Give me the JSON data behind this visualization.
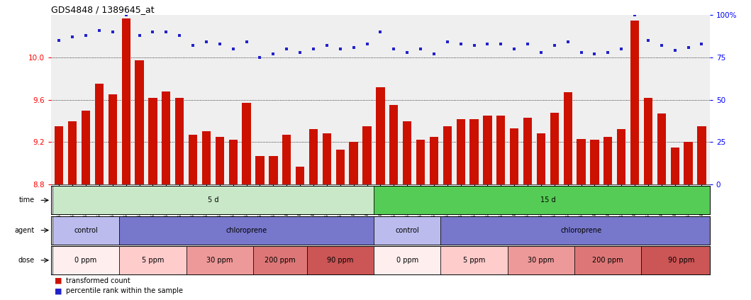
{
  "title": "GDS4848 / 1389645_at",
  "samples": [
    "GSM1001824",
    "GSM1001825",
    "GSM1001826",
    "GSM1001827",
    "GSM1001828",
    "GSM1001854",
    "GSM1001855",
    "GSM1001856",
    "GSM1001857",
    "GSM1001858",
    "GSM1001844",
    "GSM1001845",
    "GSM1001846",
    "GSM1001847",
    "GSM1001848",
    "GSM1001834",
    "GSM1001835",
    "GSM1001836",
    "GSM1001837",
    "GSM1001838",
    "GSM1001864",
    "GSM1001865",
    "GSM1001866",
    "GSM1001867",
    "GSM1001819",
    "GSM1001820",
    "GSM1001821",
    "GSM1001822",
    "GSM1001823",
    "GSM1001849",
    "GSM1001850",
    "GSM1001851",
    "GSM1001852",
    "GSM1001853",
    "GSM1001839",
    "GSM1001840",
    "GSM1001841",
    "GSM1001842",
    "GSM1001843",
    "GSM1001829",
    "GSM1001830",
    "GSM1001831",
    "GSM1001832",
    "GSM1001833",
    "GSM1001859",
    "GSM1001860",
    "GSM1001861",
    "GSM1001862",
    "GSM1001863"
  ],
  "bar_values": [
    9.35,
    9.4,
    9.5,
    9.75,
    9.65,
    10.37,
    9.97,
    9.62,
    9.68,
    9.62,
    9.27,
    9.3,
    9.25,
    9.22,
    9.57,
    9.07,
    9.07,
    9.27,
    8.97,
    9.32,
    9.28,
    9.13,
    9.2,
    9.35,
    9.72,
    9.55,
    9.4,
    9.22,
    9.25,
    9.35,
    9.42,
    9.42,
    9.45,
    9.45,
    9.33,
    9.43,
    9.28,
    9.48,
    9.67,
    9.23,
    9.22,
    9.25,
    9.32,
    10.35,
    9.62,
    9.47,
    9.15,
    9.2,
    9.35
  ],
  "percentile_values": [
    85,
    87,
    88,
    91,
    90,
    100,
    88,
    90,
    90,
    88,
    82,
    84,
    83,
    80,
    84,
    75,
    77,
    80,
    78,
    80,
    82,
    80,
    81,
    83,
    90,
    80,
    78,
    80,
    77,
    84,
    83,
    82,
    83,
    83,
    80,
    83,
    78,
    82,
    84,
    78,
    77,
    78,
    80,
    100,
    85,
    82,
    79,
    81,
    83
  ],
  "ylim_left": [
    8.8,
    10.4
  ],
  "ylim_right": [
    0,
    100
  ],
  "yticks_left": [
    8.8,
    9.2,
    9.6,
    10.0
  ],
  "yticks_right": [
    0,
    25,
    50,
    75,
    100
  ],
  "bar_color": "#cc1100",
  "dot_color": "#2222cc",
  "background_color": "#efefef",
  "time_row": {
    "label": "time",
    "segments": [
      {
        "text": "5 d",
        "start": 0,
        "end": 24,
        "color": "#c8e8c8"
      },
      {
        "text": "15 d",
        "start": 24,
        "end": 50,
        "color": "#55cc55"
      }
    ]
  },
  "agent_row": {
    "label": "agent",
    "segments": [
      {
        "text": "control",
        "start": 0,
        "end": 5,
        "color": "#bbbbee"
      },
      {
        "text": "chloroprene",
        "start": 5,
        "end": 24,
        "color": "#7777cc"
      },
      {
        "text": "control",
        "start": 24,
        "end": 29,
        "color": "#bbbbee"
      },
      {
        "text": "chloroprene",
        "start": 29,
        "end": 50,
        "color": "#7777cc"
      }
    ]
  },
  "dose_row": {
    "label": "dose",
    "segments": [
      {
        "text": "0 ppm",
        "start": 0,
        "end": 5,
        "color": "#ffeeee"
      },
      {
        "text": "5 ppm",
        "start": 5,
        "end": 10,
        "color": "#ffcccc"
      },
      {
        "text": "30 ppm",
        "start": 10,
        "end": 15,
        "color": "#ee9999"
      },
      {
        "text": "200 ppm",
        "start": 15,
        "end": 19,
        "color": "#dd7777"
      },
      {
        "text": "90 ppm",
        "start": 19,
        "end": 24,
        "color": "#cc5555"
      },
      {
        "text": "0 ppm",
        "start": 24,
        "end": 29,
        "color": "#ffeeee"
      },
      {
        "text": "5 ppm",
        "start": 29,
        "end": 34,
        "color": "#ffcccc"
      },
      {
        "text": "30 ppm",
        "start": 34,
        "end": 39,
        "color": "#ee9999"
      },
      {
        "text": "200 ppm",
        "start": 39,
        "end": 44,
        "color": "#dd7777"
      },
      {
        "text": "90 ppm",
        "start": 44,
        "end": 50,
        "color": "#cc5555"
      }
    ]
  }
}
